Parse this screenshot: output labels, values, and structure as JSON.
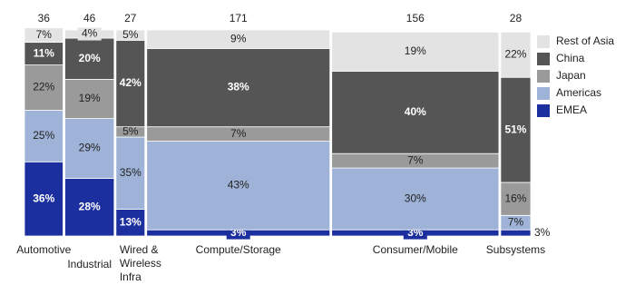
{
  "chart_data": {
    "type": "marimekko",
    "categories": [
      "Automotive",
      "Industrial",
      "Wired & Wireless Infra",
      "Compute/Storage",
      "Consumer/Mobile",
      "Subsystems"
    ],
    "totals": [
      36,
      46,
      27,
      171,
      156,
      28
    ],
    "ylim": [
      0,
      100
    ],
    "legend": "right",
    "series": [
      {
        "name": "EMEA",
        "color": "#1c2f9e",
        "values": [
          36,
          28,
          13,
          3,
          3,
          3
        ],
        "value_labels": [
          "36%",
          "28%",
          "13%",
          "3%",
          "3%",
          "3%"
        ]
      },
      {
        "name": "Americas",
        "color": "#9fb3d8",
        "values": [
          25,
          29,
          35,
          43,
          30,
          7
        ],
        "value_labels": [
          "25%",
          "29%",
          "35%",
          "43%",
          "30%",
          "7%"
        ]
      },
      {
        "name": "Japan",
        "color": "#9a9a9a",
        "values": [
          22,
          19,
          5,
          7,
          7,
          16
        ],
        "value_labels": [
          "22%",
          "19%",
          "5%",
          "7%",
          "7%",
          "16%"
        ]
      },
      {
        "name": "China",
        "color": "#555555",
        "values": [
          11,
          20,
          42,
          38,
          40,
          51
        ],
        "value_labels": [
          "11%",
          "20%",
          "42%",
          "38%",
          "40%",
          "51%"
        ]
      },
      {
        "name": "Rest of Asia",
        "color": "#e3e3e3",
        "values": [
          7,
          4,
          5,
          9,
          19,
          22
        ],
        "value_labels": [
          "7%",
          "4%",
          "5%",
          "9%",
          "19%",
          "22%"
        ]
      }
    ]
  }
}
